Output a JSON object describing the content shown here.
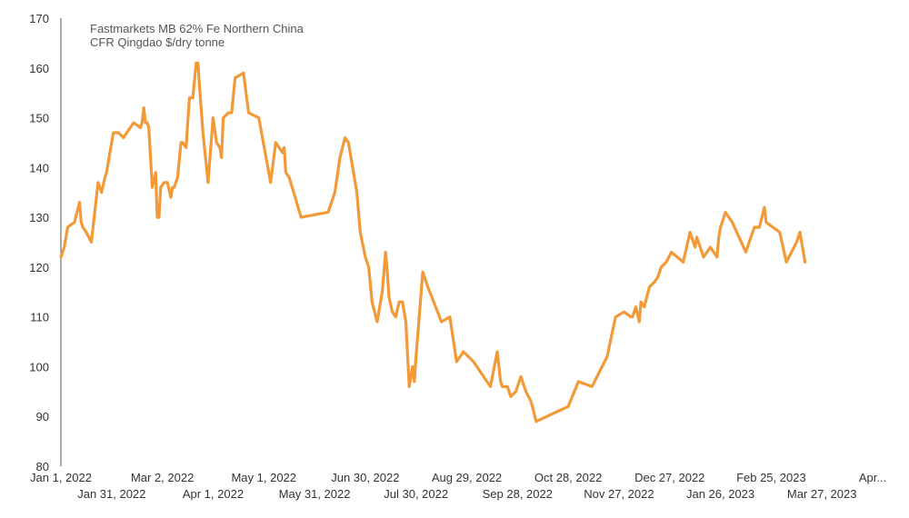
{
  "chart_data": {
    "type": "line",
    "title_lines": [
      "Fastmarkets MB 62% Fe Northern China",
      "CFR Qingdao $/dry tonne"
    ],
    "xlabel": "",
    "ylabel": "",
    "ylim": [
      80,
      170
    ],
    "y_ticks": [
      80,
      90,
      100,
      110,
      120,
      130,
      140,
      150,
      160,
      170
    ],
    "x_range": [
      "2022-01-01",
      "2023-04-26"
    ],
    "x_ticks_upper": [
      {
        "date": "2022-01-01",
        "label": "Jan 1, 2022"
      },
      {
        "date": "2022-03-02",
        "label": "Mar 2, 2022"
      },
      {
        "date": "2022-05-01",
        "label": "May 1, 2022"
      },
      {
        "date": "2022-06-30",
        "label": "Jun 30, 2022"
      },
      {
        "date": "2022-08-29",
        "label": "Aug 29, 2022"
      },
      {
        "date": "2022-10-28",
        "label": "Oct 28, 2022"
      },
      {
        "date": "2022-12-27",
        "label": "Dec 27, 2022"
      },
      {
        "date": "2023-02-25",
        "label": "Feb 25, 2023"
      },
      {
        "date": "2023-04-26",
        "label": "Apr..."
      }
    ],
    "x_ticks_lower": [
      {
        "date": "2022-01-31",
        "label": "Jan 31, 2022"
      },
      {
        "date": "2022-04-01",
        "label": "Apr 1, 2022"
      },
      {
        "date": "2022-05-31",
        "label": "May 31, 2022"
      },
      {
        "date": "2022-07-30",
        "label": "Jul 30, 2022"
      },
      {
        "date": "2022-09-28",
        "label": "Sep 28, 2022"
      },
      {
        "date": "2022-11-27",
        "label": "Nov 27, 2022"
      },
      {
        "date": "2023-01-26",
        "label": "Jan 26, 2023"
      },
      {
        "date": "2023-03-27",
        "label": "Mar 27, 2023"
      }
    ],
    "grid": false,
    "line_color": "#F29A38",
    "axis_color": "#555555",
    "series": [
      {
        "x": [
          "2022-01-01",
          "2022-01-03",
          "2022-01-05",
          "2022-01-09",
          "2022-01-12",
          "2022-01-13",
          "2022-01-14",
          "2022-01-16",
          "2022-01-19",
          "2022-01-23",
          "2022-01-25",
          "2022-01-27",
          "2022-01-28",
          "2022-02-01",
          "2022-02-04",
          "2022-02-07",
          "2022-02-13",
          "2022-02-17",
          "2022-02-18",
          "2022-02-19",
          "2022-02-20",
          "2022-02-21",
          "2022-02-22",
          "2022-02-24",
          "2022-02-26",
          "2022-02-27",
          "2022-02-28",
          "2022-03-01",
          "2022-03-03",
          "2022-03-05",
          "2022-03-07",
          "2022-03-08",
          "2022-03-09",
          "2022-03-11",
          "2022-03-13",
          "2022-03-14",
          "2022-03-16",
          "2022-03-18",
          "2022-03-20",
          "2022-03-22",
          "2022-03-23",
          "2022-03-24",
          "2022-03-26",
          "2022-03-29",
          "2022-04-01",
          "2022-04-03",
          "2022-04-05",
          "2022-04-06",
          "2022-04-07",
          "2022-04-10",
          "2022-04-12",
          "2022-04-14",
          "2022-04-19",
          "2022-04-22",
          "2022-04-28",
          "2022-05-05",
          "2022-05-08",
          "2022-05-12",
          "2022-05-13",
          "2022-05-14",
          "2022-05-16",
          "2022-05-23",
          "2022-06-08",
          "2022-06-12",
          "2022-06-15",
          "2022-06-18",
          "2022-06-20",
          "2022-06-25",
          "2022-06-27",
          "2022-06-30",
          "2022-07-02",
          "2022-07-04",
          "2022-07-07",
          "2022-07-10",
          "2022-07-12",
          "2022-07-13",
          "2022-07-14",
          "2022-07-16",
          "2022-07-18",
          "2022-07-20",
          "2022-07-22",
          "2022-07-24",
          "2022-07-26",
          "2022-07-28",
          "2022-07-29",
          "2022-07-30",
          "2022-08-03",
          "2022-08-06",
          "2022-08-14",
          "2022-08-19",
          "2022-08-23",
          "2022-08-25",
          "2022-08-27",
          "2022-09-02",
          "2022-09-12",
          "2022-09-16",
          "2022-09-18",
          "2022-09-19",
          "2022-09-20",
          "2022-09-22",
          "2022-09-24",
          "2022-09-27",
          "2022-09-30",
          "2022-10-03",
          "2022-10-06",
          "2022-10-09",
          "2022-10-28",
          "2022-11-03",
          "2022-11-11",
          "2022-11-20",
          "2022-11-25",
          "2022-11-30",
          "2022-12-04",
          "2022-12-05",
          "2022-12-07",
          "2022-12-09",
          "2022-12-10",
          "2022-12-12",
          "2022-12-15",
          "2022-12-18",
          "2022-12-20",
          "2022-12-22",
          "2022-12-25",
          "2022-12-28",
          "2023-01-04",
          "2023-01-08",
          "2023-01-10",
          "2023-01-11",
          "2023-01-12",
          "2023-01-16",
          "2023-01-20",
          "2023-01-24",
          "2023-01-25",
          "2023-01-26",
          "2023-01-29",
          "2023-02-02",
          "2023-02-06",
          "2023-02-10",
          "2023-02-15",
          "2023-02-18",
          "2023-02-21",
          "2023-02-22",
          "2023-03-02",
          "2023-03-06",
          "2023-03-12",
          "2023-03-14",
          "2023-03-17"
        ],
        "y": [
          122,
          124,
          128,
          129,
          133,
          129,
          128,
          127,
          125,
          137,
          135,
          138,
          139,
          147,
          147,
          146,
          149,
          148,
          149,
          152,
          149,
          149,
          148,
          136,
          139,
          130,
          130,
          136,
          137,
          137,
          134,
          136,
          136,
          138,
          145,
          145,
          144,
          154,
          154,
          161,
          161,
          156,
          147,
          137,
          150,
          145,
          144,
          142,
          150,
          151,
          151,
          158,
          159,
          151,
          150,
          137,
          145,
          143,
          144,
          139,
          138,
          130,
          131,
          135,
          142,
          146,
          145,
          135,
          127,
          122,
          120,
          113,
          109,
          115,
          123,
          119,
          114,
          111,
          110,
          113,
          113,
          109,
          96,
          100,
          97,
          102,
          119,
          116,
          109,
          110,
          101,
          102,
          103,
          101,
          96,
          103,
          97,
          96,
          96,
          96,
          94,
          95,
          98,
          95,
          93,
          89,
          92,
          97,
          96,
          102,
          110,
          111,
          110,
          110,
          112,
          109,
          113,
          112,
          116,
          117,
          118,
          120,
          121,
          123,
          121,
          127,
          125,
          124,
          126,
          122,
          124,
          122,
          126,
          128,
          131,
          129,
          126,
          123,
          128,
          128,
          132,
          129,
          127,
          121,
          125,
          127,
          121
        ]
      }
    ]
  }
}
